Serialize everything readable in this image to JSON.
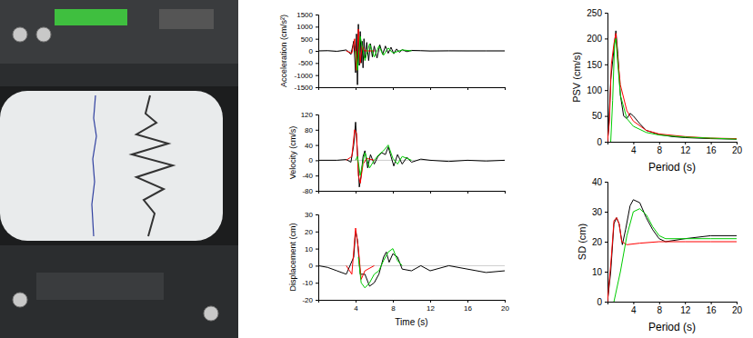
{
  "chart_data": [
    {
      "type": "line",
      "ylabel": "Acceleration (cm/s²)",
      "xlim": [
        0,
        20
      ],
      "xticks": [
        4,
        8,
        12,
        16,
        20
      ],
      "ylim": [
        -1500,
        1500
      ],
      "yticks": [
        -1500,
        -1000,
        -500,
        0,
        500,
        1000,
        1500
      ],
      "tick_labels": "y",
      "series": [
        {
          "color": "#000000",
          "x": [
            0,
            1,
            2,
            3,
            3.5,
            3.8,
            4.0,
            4.1,
            4.2,
            4.3,
            4.4,
            4.5,
            4.6,
            4.7,
            4.8,
            4.9,
            5.0,
            5.2,
            5.4,
            5.6,
            5.8,
            6.0,
            6.3,
            6.6,
            6.9,
            7.2,
            7.5,
            7.8,
            8.1,
            8.4,
            8.7,
            9.0,
            9.5,
            10,
            11,
            12,
            14,
            16,
            18,
            20
          ],
          "values": [
            0,
            10,
            -20,
            40,
            -150,
            400,
            -900,
            700,
            -1400,
            1100,
            -600,
            800,
            -500,
            400,
            -700,
            500,
            -300,
            350,
            -400,
            300,
            -250,
            200,
            -300,
            250,
            -150,
            200,
            -100,
            150,
            -120,
            80,
            -60,
            50,
            -30,
            20,
            10,
            -5,
            3,
            0,
            0,
            0
          ]
        },
        {
          "color": "#ff0000",
          "x": [
            3,
            3.6,
            3.9,
            4.1,
            4.3,
            4.5,
            4.7,
            5,
            6
          ],
          "values": [
            0,
            -100,
            500,
            -800,
            900,
            -500,
            200,
            0,
            0
          ]
        },
        {
          "color": "#00cc00",
          "x": [
            4,
            4.2,
            4.5,
            5,
            5.5,
            6,
            6.5,
            7,
            7.5,
            8,
            9,
            10
          ],
          "values": [
            0,
            -800,
            600,
            -400,
            300,
            -250,
            200,
            -180,
            120,
            -90,
            40,
            0
          ]
        }
      ]
    },
    {
      "type": "line",
      "ylabel": "Velocity (cm/s)",
      "xlim": [
        0,
        20
      ],
      "xticks": [
        4,
        8,
        12,
        16,
        20
      ],
      "ylim": [
        -80,
        120
      ],
      "yticks": [
        -80,
        -40,
        0,
        40,
        80,
        120
      ],
      "tick_labels": "y",
      "series": [
        {
          "color": "#000000",
          "x": [
            0,
            2,
            3,
            3.5,
            3.8,
            4.0,
            4.2,
            4.4,
            4.6,
            4.8,
            5.0,
            5.3,
            5.6,
            6.0,
            6.4,
            6.8,
            7.2,
            7.5,
            7.8,
            8.1,
            8.5,
            9,
            9.5,
            10,
            11,
            12,
            14,
            16,
            18,
            20
          ],
          "values": [
            0,
            0,
            2,
            -5,
            40,
            100,
            20,
            -70,
            -40,
            10,
            25,
            -20,
            15,
            -10,
            10,
            20,
            15,
            35,
            10,
            -15,
            15,
            -10,
            8,
            -5,
            3,
            0,
            -3,
            0,
            -2,
            0
          ]
        },
        {
          "color": "#ff0000",
          "x": [
            3,
            3.6,
            3.9,
            4.1,
            4.3,
            4.5,
            4.8,
            5.2,
            6
          ],
          "values": [
            0,
            10,
            80,
            70,
            -40,
            -60,
            -10,
            5,
            0
          ]
        },
        {
          "color": "#00cc00",
          "x": [
            4,
            4.2,
            4.5,
            5,
            5.5,
            6,
            6.5,
            7,
            7.5,
            8,
            8.5,
            9,
            10
          ],
          "values": [
            0,
            10,
            -40,
            20,
            -20,
            0,
            15,
            25,
            40,
            5,
            -10,
            10,
            0
          ]
        }
      ]
    },
    {
      "type": "line",
      "ylabel": "Displacement (cm)",
      "xlabel": "Time (s)",
      "xlim": [
        0,
        20
      ],
      "xticks": [
        4,
        8,
        12,
        16,
        20
      ],
      "ylim": [
        -20,
        30
      ],
      "yticks": [
        -20,
        -10,
        0,
        10,
        20,
        30
      ],
      "series": [
        {
          "color": "#000000",
          "x": [
            0,
            1,
            2,
            3,
            3.8,
            4.0,
            4.2,
            4.5,
            5,
            5.5,
            6,
            6.5,
            7,
            7.3,
            7.6,
            8,
            8.5,
            9,
            10,
            11,
            12,
            14,
            16,
            18,
            20
          ],
          "values": [
            0,
            -1,
            -3,
            -5,
            5,
            20,
            15,
            -5,
            -5,
            -12,
            -10,
            -5,
            5,
            8,
            2,
            7,
            5,
            -2,
            -3,
            0,
            -3,
            0,
            -2,
            -4,
            -3
          ]
        },
        {
          "color": "#ff0000",
          "x": [
            3,
            3.6,
            4.0,
            4.3,
            4.6,
            5,
            6
          ],
          "values": [
            0,
            -5,
            22,
            10,
            -8,
            -3,
            0
          ]
        },
        {
          "color": "#00cc00",
          "x": [
            4.3,
            4.6,
            5,
            5.5,
            6,
            6.5,
            7,
            7.5,
            8,
            8.5,
            9
          ],
          "values": [
            5,
            -10,
            -13,
            -10,
            -5,
            -3,
            3,
            8,
            10,
            3,
            0
          ]
        }
      ]
    },
    {
      "type": "line",
      "ylabel": "PSV (cm/s)",
      "xlabel": "Period (s)",
      "xlim": [
        0,
        20
      ],
      "xticks": [
        4,
        8,
        12,
        16,
        20
      ],
      "ylim": [
        0,
        250
      ],
      "yticks": [
        0,
        50,
        100,
        150,
        200,
        250
      ],
      "series": [
        {
          "color": "#000000",
          "x": [
            0,
            0.2,
            0.5,
            1,
            1.3,
            1.6,
            2,
            2.5,
            3,
            3.5,
            4,
            5,
            6,
            8,
            10,
            12,
            16,
            20
          ],
          "values": [
            0,
            30,
            120,
            180,
            215,
            170,
            90,
            50,
            45,
            55,
            50,
            35,
            22,
            14,
            10,
            8,
            6,
            5
          ]
        },
        {
          "color": "#ff0000",
          "x": [
            0,
            0.3,
            0.6,
            1,
            1.3,
            1.6,
            2,
            3,
            4,
            6,
            8,
            12,
            16,
            20
          ],
          "values": [
            0,
            40,
            150,
            190,
            210,
            160,
            110,
            60,
            40,
            22,
            15,
            10,
            7,
            6
          ]
        },
        {
          "color": "#00cc00",
          "x": [
            0.5,
            0.8,
            1.1,
            1.3,
            1.6,
            2,
            3,
            4,
            6,
            8,
            12,
            20
          ],
          "values": [
            0,
            80,
            190,
            200,
            150,
            90,
            45,
            30,
            18,
            13,
            9,
            5
          ]
        }
      ]
    },
    {
      "type": "line",
      "ylabel": "SD (cm)",
      "xlabel": "Period (s)",
      "xlim": [
        0,
        20
      ],
      "xticks": [
        4,
        8,
        12,
        16,
        20
      ],
      "ylim": [
        0,
        40
      ],
      "yticks": [
        0,
        10,
        20,
        30,
        40
      ],
      "series": [
        {
          "color": "#000000",
          "x": [
            0,
            0.5,
            1,
            1.4,
            1.8,
            2.3,
            2.8,
            3.5,
            4,
            5,
            6,
            7,
            8,
            9,
            12,
            16,
            20
          ],
          "values": [
            0,
            10,
            26,
            28,
            26,
            19,
            24,
            32,
            34,
            33,
            28,
            24,
            21,
            20,
            21,
            22,
            22
          ]
        },
        {
          "color": "#ff0000",
          "x": [
            0,
            0.6,
            1,
            1.4,
            1.8,
            2.2,
            3,
            5,
            8,
            12,
            16,
            20
          ],
          "values": [
            0,
            15,
            27,
            28,
            26,
            20,
            19,
            19.5,
            20,
            20,
            20,
            20
          ]
        },
        {
          "color": "#00cc00",
          "x": [
            1,
            2,
            3,
            4,
            5,
            6,
            7,
            8,
            9,
            12,
            16,
            20
          ],
          "values": [
            0,
            10,
            22,
            30,
            31,
            29,
            25,
            22,
            21,
            21,
            21,
            21
          ]
        }
      ]
    }
  ]
}
